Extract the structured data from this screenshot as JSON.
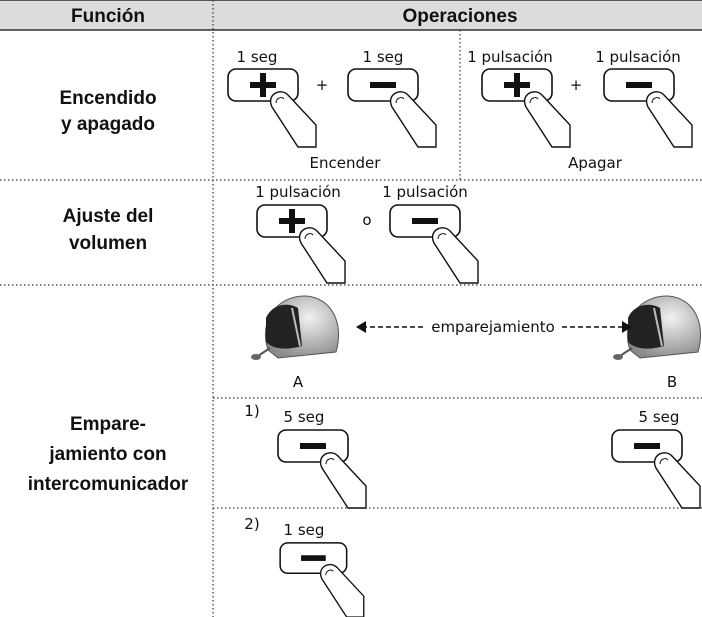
{
  "header": {
    "function": "Función",
    "operations": "Operaciones"
  },
  "rows": [
    {
      "function": [
        "Encendido",
        "y apagado"
      ],
      "groups": [
        {
          "labels": [
            "1 seg",
            "1 seg"
          ],
          "joiner": "+",
          "caption": "Encender"
        },
        {
          "labels": [
            "1 pulsación",
            "1 pulsación"
          ],
          "joiner": "+",
          "caption": "Apagar"
        }
      ]
    },
    {
      "function": [
        "Ajuste del",
        "volumen"
      ],
      "labels": [
        "1 pulsación",
        "1 pulsación"
      ],
      "joiner": "o"
    },
    {
      "function": [
        "Empare-",
        "jamiento con",
        "intercomunicador"
      ],
      "pairing": "emparejamiento",
      "helmets": [
        "A",
        "B"
      ],
      "steps": [
        {
          "number": "1)",
          "labels": [
            "5 seg",
            "5 seg"
          ]
        },
        {
          "number": "2)",
          "labels": [
            "1 seg"
          ]
        }
      ]
    }
  ]
}
